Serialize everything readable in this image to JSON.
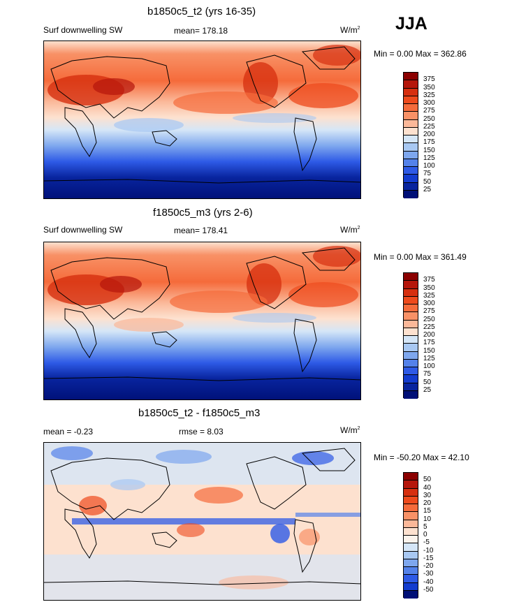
{
  "season": "JJA",
  "panels": [
    {
      "title": "b1850c5_t2 (yrs 16-35)",
      "left_label": "Surf downwelling SW",
      "center_label": "mean= 178.18",
      "units_base": "W/m",
      "units_exp": "2",
      "minmax": "Min =   0.00 Max = 362.86",
      "colorbar": {
        "labels": [
          "375",
          "350",
          "325",
          "300",
          "275",
          "250",
          "225",
          "200",
          "175",
          "150",
          "125",
          "100",
          "75",
          "50",
          "25"
        ],
        "colors": [
          "#8b0000",
          "#b5160b",
          "#d62f0f",
          "#ee4a1c",
          "#f56b3b",
          "#f89166",
          "#fbb899",
          "#fde1cf",
          "#d5e6f7",
          "#a8c8f2",
          "#7ea7ee",
          "#5482ea",
          "#2e5ae6",
          "#133ccf",
          "#08249e",
          "#001077"
        ]
      }
    },
    {
      "title": "f1850c5_m3 (yrs 2-6)",
      "left_label": "Surf downwelling SW",
      "center_label": "mean= 178.41",
      "units_base": "W/m",
      "units_exp": "2",
      "minmax": "Min =   0.00 Max = 361.49",
      "colorbar": {
        "labels": [
          "375",
          "350",
          "325",
          "300",
          "275",
          "250",
          "225",
          "200",
          "175",
          "150",
          "125",
          "100",
          "75",
          "50",
          "25"
        ],
        "colors": [
          "#8b0000",
          "#b5160b",
          "#d62f0f",
          "#ee4a1c",
          "#f56b3b",
          "#f89166",
          "#fbb899",
          "#fde1cf",
          "#d5e6f7",
          "#a8c8f2",
          "#7ea7ee",
          "#5482ea",
          "#2e5ae6",
          "#133ccf",
          "#08249e",
          "#001077"
        ]
      }
    },
    {
      "title": "b1850c5_t2 - f1850c5_m3",
      "left_label": "mean =  -0.23",
      "center_label": "rmse =   8.03",
      "units_base": "W/m",
      "units_exp": "2",
      "minmax": "Min = -50.20 Max =  42.10",
      "colorbar": {
        "labels": [
          "50",
          "40",
          "30",
          "20",
          "15",
          "10",
          "5",
          "0",
          "-5",
          "-10",
          "-15",
          "-20",
          "-30",
          "-40",
          "-50"
        ],
        "colors": [
          "#8b0000",
          "#b5160b",
          "#d62f0f",
          "#ee4a1c",
          "#f56b3b",
          "#f89166",
          "#fbb899",
          "#fde1cf",
          "#fbf3ec",
          "#d5e6f7",
          "#a8c8f2",
          "#7ea7ee",
          "#5482ea",
          "#2e5ae6",
          "#133ccf",
          "#001077"
        ]
      }
    }
  ]
}
